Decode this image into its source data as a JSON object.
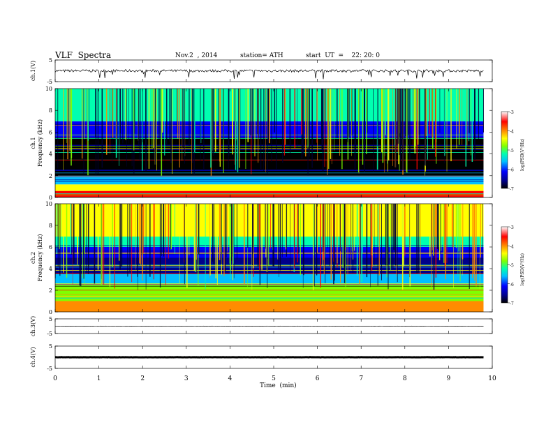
{
  "header": {
    "title": "VLF  Spectra",
    "date": "Nov.2  , 2014",
    "station": "station= ATH",
    "start_ut": "start  UT  =    22: 20: 0"
  },
  "colors": {
    "spectrum_scale": [
      "#000000",
      "#00008b",
      "#0000ff",
      "#00bfff",
      "#00ffb0",
      "#7fff00",
      "#ffff00",
      "#ff8c00",
      "#ff0000",
      "#ffb6c1"
    ]
  },
  "chart_data": [
    {
      "type": "line",
      "panel": "ch1-waveform",
      "ylabel": "ch.1(V)",
      "ylim": [
        -5,
        5
      ],
      "yticks": [
        "5",
        "-5"
      ],
      "xlim": [
        0,
        10
      ],
      "approx_level": 0.0,
      "description_values": {
        "x_end_min": 9.8
      }
    },
    {
      "type": "heatmap",
      "panel": "ch1-spectrogram",
      "ylabel": "ch.1\nFrequency  (kHz)",
      "ylim": [
        0,
        10
      ],
      "yticks": [
        "0",
        "2",
        "4",
        "6",
        "8",
        "10"
      ],
      "xlim": [
        0,
        10
      ],
      "x_end_min": 9.8,
      "colorbar": {
        "label": "log(PSD(V²/Hz)",
        "range": [
          -7,
          -3
        ],
        "ticks": [
          "-3",
          "-4",
          "-5",
          "-6",
          "-7"
        ]
      },
      "bands_khz": [
        {
          "from": 0,
          "to": 0.6,
          "level": -3.4
        },
        {
          "from": 0.6,
          "to": 1.2,
          "level": -4.2
        },
        {
          "from": 1.2,
          "to": 2.0,
          "level": -5.6
        },
        {
          "from": 2.0,
          "to": 3.5,
          "level": -6.6
        },
        {
          "from": 3.5,
          "to": 5.5,
          "level": -6.8
        },
        {
          "from": 5.5,
          "to": 7.0,
          "level": -5.9
        },
        {
          "from": 7.0,
          "to": 10.0,
          "level": -4.9
        }
      ]
    },
    {
      "type": "heatmap",
      "panel": "ch2-spectrogram",
      "ylabel": "ch.2\nFrequency  (kHz)",
      "ylim": [
        0,
        10
      ],
      "yticks": [
        "0",
        "2",
        "4",
        "6",
        "8",
        "10"
      ],
      "xlim": [
        0,
        10
      ],
      "x_end_min": 9.8,
      "colorbar": {
        "label": "log(PSD(V²/Hz)",
        "range": [
          -7,
          -3
        ],
        "ticks": [
          "-3",
          "-4",
          "-5",
          "-6",
          "-7"
        ]
      },
      "bands_khz": [
        {
          "from": 0,
          "to": 1.0,
          "level": -3.8
        },
        {
          "from": 1.0,
          "to": 2.5,
          "level": -4.6
        },
        {
          "from": 2.5,
          "to": 3.5,
          "level": -5.4
        },
        {
          "from": 3.5,
          "to": 5.0,
          "level": -6.3
        },
        {
          "from": 5.0,
          "to": 6.0,
          "level": -5.8
        },
        {
          "from": 6.0,
          "to": 7.0,
          "level": -5.2
        },
        {
          "from": 7.0,
          "to": 10.0,
          "level": -4.3
        }
      ]
    },
    {
      "type": "line",
      "panel": "ch3-waveform",
      "ylabel": "ch.3(V)",
      "ylim": [
        -5,
        5
      ],
      "yticks": [
        "5",
        "-5"
      ],
      "xlim": [
        0,
        10
      ],
      "approx_level": 0.0,
      "x_end_min": 9.8
    },
    {
      "type": "line",
      "panel": "ch4-waveform",
      "ylabel": "ch.4(V)",
      "ylim": [
        -5,
        5
      ],
      "yticks": [
        "5",
        "-5"
      ],
      "xlim": [
        0,
        10
      ],
      "approx_level": 0.0,
      "x_end_min": 9.8
    }
  ],
  "xaxis": {
    "label": "Time  (min)",
    "ticks": [
      "0",
      "1",
      "2",
      "3",
      "4",
      "5",
      "6",
      "7",
      "8",
      "9",
      "10"
    ]
  }
}
